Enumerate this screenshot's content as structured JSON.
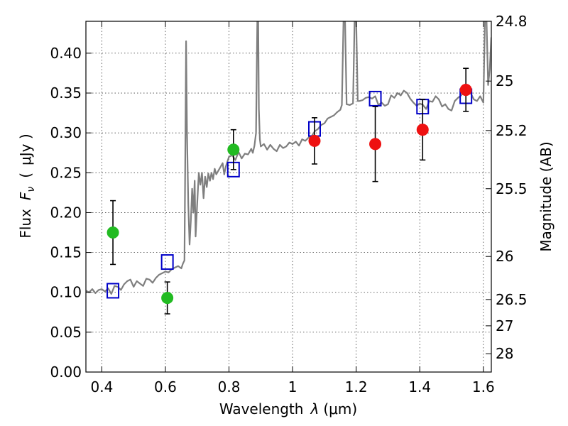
{
  "chart_data": {
    "type": "scatter",
    "xlabel": "Wavelength",
    "xlabel_symbol": "λ",
    "xlabel_unit": "(μm)",
    "ylabel": "Flux",
    "ylabel_symbol": "F",
    "ylabel_subscript": "ν",
    "ylabel_unit": "μJy )",
    "ylabel_open": "(",
    "ylabel_right": "Magnitude (AB)",
    "xlim": [
      0.35,
      1.625
    ],
    "ylim": [
      0.0,
      0.44
    ],
    "grid": true,
    "x_ticks": [
      0.4,
      0.6,
      0.8,
      1.0,
      1.2,
      1.4,
      1.6
    ],
    "x_tick_labels": [
      "0.4",
      "0.6",
      "0.8",
      "1",
      "1.2",
      "1.4",
      "1.6"
    ],
    "y_ticks": [
      0.0,
      0.05,
      0.1,
      0.15,
      0.2,
      0.25,
      0.3,
      0.35,
      0.4
    ],
    "y_tick_labels": [
      "0.00",
      "0.05",
      "0.10",
      "0.15",
      "0.20",
      "0.25",
      "0.30",
      "0.35",
      "0.40"
    ],
    "right_ticks": [
      {
        "label": "24.8",
        "flux": 0.44
      },
      {
        "label": "25",
        "flux": 0.365
      },
      {
        "label": "25.2",
        "flux": 0.303
      },
      {
        "label": "25.5",
        "flux": 0.23
      },
      {
        "label": "26",
        "flux": 0.145
      },
      {
        "label": "26.5",
        "flux": 0.091
      },
      {
        "label": "27",
        "flux": 0.058
      },
      {
        "label": "28",
        "flux": 0.023
      }
    ],
    "photometry": [
      {
        "x": 0.435,
        "y": 0.175,
        "err": 0.04,
        "color": "#22bb22"
      },
      {
        "x": 0.606,
        "y": 0.093,
        "err": 0.02,
        "color": "#22bb22"
      },
      {
        "x": 0.814,
        "y": 0.279,
        "err": 0.025,
        "color": "#22bb22"
      },
      {
        "x": 1.069,
        "y": 0.29,
        "err": 0.029,
        "color": "#ee1111"
      },
      {
        "x": 1.26,
        "y": 0.286,
        "err": 0.047,
        "color": "#ee1111"
      },
      {
        "x": 1.409,
        "y": 0.304,
        "err": 0.038,
        "color": "#ee1111"
      },
      {
        "x": 1.545,
        "y": 0.354,
        "err": 0.027,
        "color": "#ee1111"
      }
    ],
    "model_points": [
      {
        "x": 0.435,
        "y": 0.102
      },
      {
        "x": 0.606,
        "y": 0.138
      },
      {
        "x": 0.814,
        "y": 0.254
      },
      {
        "x": 1.069,
        "y": 0.305
      },
      {
        "x": 1.26,
        "y": 0.343
      },
      {
        "x": 1.409,
        "y": 0.333
      },
      {
        "x": 1.545,
        "y": 0.346
      }
    ],
    "spectrum": [
      [
        0.35,
        0.102
      ],
      [
        0.36,
        0.1
      ],
      [
        0.37,
        0.104
      ],
      [
        0.38,
        0.099
      ],
      [
        0.39,
        0.103
      ],
      [
        0.4,
        0.104
      ],
      [
        0.41,
        0.101
      ],
      [
        0.42,
        0.105
      ],
      [
        0.43,
        0.098
      ],
      [
        0.44,
        0.108
      ],
      [
        0.45,
        0.107
      ],
      [
        0.46,
        0.103
      ],
      [
        0.47,
        0.11
      ],
      [
        0.48,
        0.114
      ],
      [
        0.49,
        0.116
      ],
      [
        0.5,
        0.107
      ],
      [
        0.51,
        0.114
      ],
      [
        0.52,
        0.111
      ],
      [
        0.53,
        0.108
      ],
      [
        0.54,
        0.117
      ],
      [
        0.55,
        0.116
      ],
      [
        0.56,
        0.112
      ],
      [
        0.57,
        0.118
      ],
      [
        0.58,
        0.122
      ],
      [
        0.59,
        0.124
      ],
      [
        0.6,
        0.126
      ],
      [
        0.61,
        0.125
      ],
      [
        0.62,
        0.129
      ],
      [
        0.63,
        0.131
      ],
      [
        0.64,
        0.133
      ],
      [
        0.65,
        0.13
      ],
      [
        0.655,
        0.136
      ],
      [
        0.66,
        0.14
      ],
      [
        0.663,
        0.3
      ],
      [
        0.665,
        0.415
      ],
      [
        0.668,
        0.3
      ],
      [
        0.672,
        0.21
      ],
      [
        0.676,
        0.16
      ],
      [
        0.68,
        0.19
      ],
      [
        0.684,
        0.23
      ],
      [
        0.688,
        0.2
      ],
      [
        0.692,
        0.24
      ],
      [
        0.695,
        0.17
      ],
      [
        0.7,
        0.21
      ],
      [
        0.705,
        0.25
      ],
      [
        0.71,
        0.235
      ],
      [
        0.715,
        0.25
      ],
      [
        0.72,
        0.218
      ],
      [
        0.725,
        0.245
      ],
      [
        0.73,
        0.232
      ],
      [
        0.735,
        0.249
      ],
      [
        0.74,
        0.24
      ],
      [
        0.745,
        0.25
      ],
      [
        0.75,
        0.242
      ],
      [
        0.755,
        0.255
      ],
      [
        0.76,
        0.248
      ],
      [
        0.77,
        0.255
      ],
      [
        0.78,
        0.262
      ],
      [
        0.785,
        0.248
      ],
      [
        0.79,
        0.258
      ],
      [
        0.8,
        0.27
      ],
      [
        0.81,
        0.272
      ],
      [
        0.82,
        0.266
      ],
      [
        0.83,
        0.276
      ],
      [
        0.84,
        0.268
      ],
      [
        0.85,
        0.274
      ],
      [
        0.86,
        0.273
      ],
      [
        0.87,
        0.28
      ],
      [
        0.875,
        0.275
      ],
      [
        0.88,
        0.284
      ],
      [
        0.885,
        0.3
      ],
      [
        0.889,
        0.44
      ],
      [
        0.892,
        0.44
      ],
      [
        0.894,
        0.33
      ],
      [
        0.897,
        0.292
      ],
      [
        0.9,
        0.283
      ],
      [
        0.91,
        0.286
      ],
      [
        0.92,
        0.279
      ],
      [
        0.93,
        0.285
      ],
      [
        0.94,
        0.28
      ],
      [
        0.95,
        0.277
      ],
      [
        0.96,
        0.285
      ],
      [
        0.97,
        0.281
      ],
      [
        0.98,
        0.283
      ],
      [
        0.99,
        0.288
      ],
      [
        1.0,
        0.286
      ],
      [
        1.01,
        0.289
      ],
      [
        1.02,
        0.284
      ],
      [
        1.03,
        0.292
      ],
      [
        1.04,
        0.29
      ],
      [
        1.05,
        0.294
      ],
      [
        1.06,
        0.296
      ],
      [
        1.07,
        0.302
      ],
      [
        1.08,
        0.305
      ],
      [
        1.09,
        0.31
      ],
      [
        1.1,
        0.312
      ],
      [
        1.11,
        0.318
      ],
      [
        1.12,
        0.32
      ],
      [
        1.13,
        0.322
      ],
      [
        1.14,
        0.326
      ],
      [
        1.15,
        0.329
      ],
      [
        1.155,
        0.335
      ],
      [
        1.16,
        0.44
      ],
      [
        1.165,
        0.44
      ],
      [
        1.17,
        0.336
      ],
      [
        1.18,
        0.335
      ],
      [
        1.19,
        0.337
      ],
      [
        1.195,
        0.44
      ],
      [
        1.2,
        0.44
      ],
      [
        1.205,
        0.34
      ],
      [
        1.21,
        0.34
      ],
      [
        1.22,
        0.341
      ],
      [
        1.23,
        0.344
      ],
      [
        1.24,
        0.345
      ],
      [
        1.25,
        0.343
      ],
      [
        1.26,
        0.346
      ],
      [
        1.27,
        0.335
      ],
      [
        1.28,
        0.338
      ],
      [
        1.29,
        0.334
      ],
      [
        1.3,
        0.336
      ],
      [
        1.31,
        0.347
      ],
      [
        1.32,
        0.344
      ],
      [
        1.33,
        0.35
      ],
      [
        1.34,
        0.347
      ],
      [
        1.35,
        0.353
      ],
      [
        1.36,
        0.35
      ],
      [
        1.37,
        0.343
      ],
      [
        1.38,
        0.338
      ],
      [
        1.39,
        0.334
      ],
      [
        1.4,
        0.337
      ],
      [
        1.41,
        0.335
      ],
      [
        1.42,
        0.33
      ],
      [
        1.43,
        0.34
      ],
      [
        1.44,
        0.339
      ],
      [
        1.45,
        0.346
      ],
      [
        1.46,
        0.342
      ],
      [
        1.47,
        0.333
      ],
      [
        1.48,
        0.336
      ],
      [
        1.49,
        0.33
      ],
      [
        1.5,
        0.328
      ],
      [
        1.51,
        0.34
      ],
      [
        1.52,
        0.344
      ],
      [
        1.53,
        0.347
      ],
      [
        1.54,
        0.352
      ],
      [
        1.55,
        0.348
      ],
      [
        1.56,
        0.35
      ],
      [
        1.57,
        0.342
      ],
      [
        1.58,
        0.34
      ],
      [
        1.59,
        0.346
      ],
      [
        1.6,
        0.338
      ],
      [
        1.605,
        0.44
      ],
      [
        1.61,
        0.44
      ],
      [
        1.615,
        0.36
      ],
      [
        1.62,
        0.38
      ],
      [
        1.625,
        0.42
      ]
    ]
  }
}
